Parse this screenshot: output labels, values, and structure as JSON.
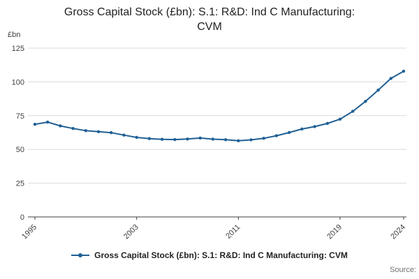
{
  "title_lines": [
    "Gross Capital Stock (£bn): S.1: R&D: Ind C Manufacturing:",
    "CVM"
  ],
  "y_unit_label": "£bn",
  "legend": {
    "series_label": "Gross Capital Stock (£bn): S.1: R&D: Ind C Manufacturing: CVM"
  },
  "source_label": "Source:",
  "colors": {
    "line": "#206095",
    "grid": "#dbdbdb",
    "axis": "#414042",
    "tick_text": "#414042",
    "title_text": "#222222",
    "legend_text": "#222222",
    "source_text": "#707070"
  },
  "chart_data": {
    "type": "line",
    "title": "Gross Capital Stock (£bn): S.1: R&D: Ind C Manufacturing: CVM",
    "xlabel": "",
    "ylabel": "£bn",
    "series_name": "Gross Capital Stock (£bn): S.1: R&D: Ind C Manufacturing: CVM",
    "x": [
      1995,
      1996,
      1997,
      1998,
      1999,
      2000,
      2001,
      2002,
      2003,
      2004,
      2005,
      2006,
      2007,
      2008,
      2009,
      2010,
      2011,
      2012,
      2013,
      2014,
      2015,
      2016,
      2017,
      2018,
      2019,
      2020,
      2021,
      2022,
      2023,
      2024
    ],
    "values": [
      68.6,
      70.2,
      67.4,
      65.5,
      63.9,
      63.1,
      62.4,
      60.6,
      58.9,
      58.0,
      57.5,
      57.3,
      57.7,
      58.4,
      57.6,
      57.2,
      56.4,
      57.1,
      58.2,
      60.1,
      62.5,
      65.1,
      66.9,
      69.2,
      72.4,
      78.2,
      85.6,
      93.9,
      102.6,
      107.9
    ],
    "ylim": [
      0,
      125
    ],
    "yticks": [
      0,
      25,
      50,
      75,
      100,
      125
    ],
    "xticks": [
      1995,
      2003,
      2011,
      2019,
      2024
    ],
    "grid": true,
    "marker": "circle",
    "legend_position": "bottom"
  }
}
